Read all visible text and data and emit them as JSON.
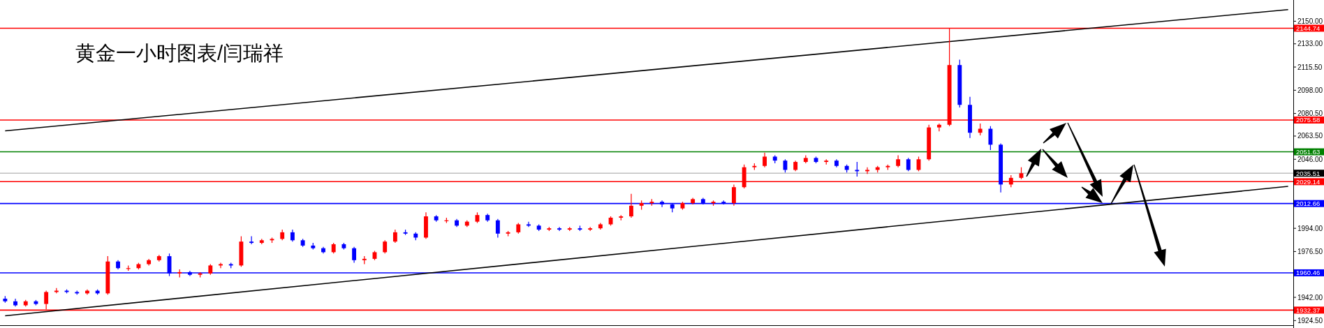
{
  "chart_data": {
    "type": "candlestick",
    "title": "黄金一小时图表/闫瑞祥",
    "categories": [
      null,
      null,
      null,
      null,
      null,
      null,
      null,
      null,
      null,
      null,
      null,
      null,
      null,
      null,
      null,
      null,
      null,
      null,
      null,
      null,
      null,
      null,
      null,
      null,
      null,
      null,
      null,
      null,
      null,
      null,
      null,
      null,
      null,
      null,
      null,
      null,
      null,
      null,
      null,
      null,
      null,
      null,
      null,
      null,
      null,
      null,
      null,
      null,
      null,
      null,
      null,
      null,
      null,
      null,
      null,
      null,
      null,
      null,
      null,
      null,
      null,
      null,
      null,
      null,
      null,
      null,
      null,
      null,
      null,
      null,
      null,
      null,
      null,
      null,
      null,
      null,
      null,
      null,
      null,
      null,
      null,
      null,
      null,
      null,
      null,
      null,
      null,
      null,
      null,
      null,
      null,
      null,
      null,
      null,
      null,
      null,
      null,
      null,
      null,
      null,
      null,
      null,
      null,
      null,
      null,
      null,
      null,
      null,
      null,
      null,
      null,
      null,
      null,
      null,
      null,
      null,
      null,
      null,
      null,
      null,
      null,
      null,
      null,
      null,
      null,
      null
    ],
    "ohlc": [
      [
        1941,
        1943,
        1938,
        1939
      ],
      [
        1939,
        1941,
        1935,
        1936
      ],
      [
        1936,
        1940,
        1935,
        1939
      ],
      [
        1939,
        1940,
        1936,
        1937
      ],
      [
        1937,
        1947,
        1933,
        1946
      ],
      [
        1946,
        1949,
        1945,
        1947
      ],
      [
        1947,
        1948,
        1945,
        1946
      ],
      [
        1946,
        1947,
        1944,
        1945
      ],
      [
        1945,
        1948,
        1944,
        1947
      ],
      [
        1947,
        1948,
        1944,
        1945
      ],
      [
        1945,
        1973,
        1944,
        1969
      ],
      [
        1969,
        1970,
        1963,
        1964
      ],
      [
        1964,
        1966,
        1962,
        1964
      ],
      [
        1964,
        1968,
        1963,
        1967
      ],
      [
        1967,
        1971,
        1966,
        1970
      ],
      [
        1970,
        1974,
        1969,
        1973
      ],
      [
        1973,
        1975,
        1958,
        1960
      ],
      [
        1960,
        1963,
        1957,
        1961
      ],
      [
        1961,
        1962,
        1958,
        1959
      ],
      [
        1959,
        1961,
        1957,
        1960
      ],
      [
        1960,
        1967,
        1959,
        1966
      ],
      [
        1966,
        1968,
        1964,
        1967
      ],
      [
        1967,
        1968,
        1964,
        1966
      ],
      [
        1966,
        1988,
        1965,
        1984
      ],
      [
        1984,
        1988,
        1982,
        1983
      ],
      [
        1983,
        1986,
        1982,
        1985
      ],
      [
        1985,
        1987,
        1983,
        1986
      ],
      [
        1986,
        1993,
        1985,
        1991
      ],
      [
        1991,
        1993,
        1984,
        1985
      ],
      [
        1985,
        1986,
        1980,
        1981
      ],
      [
        1981,
        1983,
        1978,
        1979
      ],
      [
        1979,
        1980,
        1975,
        1976
      ],
      [
        1976,
        1983,
        1975,
        1982
      ],
      [
        1982,
        1983,
        1978,
        1979
      ],
      [
        1979,
        1980,
        1968,
        1970
      ],
      [
        1970,
        1973,
        1967,
        1971
      ],
      [
        1971,
        1977,
        1970,
        1976
      ],
      [
        1976,
        1985,
        1975,
        1984
      ],
      [
        1984,
        1993,
        1983,
        1991
      ],
      [
        1991,
        1993,
        1989,
        1990
      ],
      [
        1990,
        1991,
        1985,
        1987
      ],
      [
        1987,
        2006,
        1986,
        2003
      ],
      [
        2003,
        2004,
        1999,
        2000
      ],
      [
        2000,
        2002,
        1998,
        2000
      ],
      [
        2000,
        2001,
        1995,
        1996
      ],
      [
        1996,
        2000,
        1995,
        1999
      ],
      [
        1999,
        2006,
        1998,
        2004
      ],
      [
        2004,
        2005,
        1999,
        2000
      ],
      [
        2000,
        2001,
        1987,
        1990
      ],
      [
        1990,
        1992,
        1988,
        1991
      ],
      [
        1991,
        1998,
        1990,
        1997
      ],
      [
        1997,
        1999,
        1995,
        1996
      ],
      [
        1996,
        1997,
        1992,
        1993
      ],
      [
        1993,
        1995,
        1992,
        1994
      ],
      [
        1994,
        1995,
        1992,
        1993
      ],
      [
        1993,
        1995,
        1992,
        1994
      ],
      [
        1994,
        1996,
        1992,
        1993
      ],
      [
        1993,
        1995,
        1992,
        1994
      ],
      [
        1994,
        1998,
        1993,
        1997
      ],
      [
        1997,
        2003,
        1996,
        2002
      ],
      [
        2002,
        2004,
        2000,
        2003
      ],
      [
        2003,
        2020,
        2002,
        2011
      ],
      [
        2011,
        2015,
        2008,
        2013
      ],
      [
        2013,
        2016,
        2011,
        2014
      ],
      [
        2014,
        2015,
        2010,
        2012
      ],
      [
        2012,
        2013,
        2006,
        2009
      ],
      [
        2009,
        2014,
        2008,
        2013
      ],
      [
        2013,
        2017,
        2012,
        2016
      ],
      [
        2016,
        2017,
        2012,
        2013
      ],
      [
        2013,
        2015,
        2011,
        2014
      ],
      [
        2014,
        2015,
        2012,
        2013
      ],
      [
        2013,
        2027,
        2011,
        2025
      ],
      [
        2025,
        2042,
        2024,
        2040
      ],
      [
        2040,
        2043,
        2038,
        2041
      ],
      [
        2041,
        2051,
        2040,
        2048
      ],
      [
        2048,
        2049,
        2043,
        2045
      ],
      [
        2045,
        2046,
        2036,
        2038
      ],
      [
        2038,
        2045,
        2037,
        2044
      ],
      [
        2044,
        2049,
        2043,
        2047
      ],
      [
        2047,
        2048,
        2043,
        2044
      ],
      [
        2044,
        2046,
        2042,
        2045
      ],
      [
        2045,
        2046,
        2040,
        2041
      ],
      [
        2041,
        2042,
        2036,
        2038
      ],
      [
        2038,
        2044,
        2033,
        2037
      ],
      [
        2037,
        2040,
        2035,
        2038
      ],
      [
        2038,
        2041,
        2036,
        2040
      ],
      [
        2040,
        2042,
        2038,
        2041
      ],
      [
        2041,
        2049,
        2040,
        2046
      ],
      [
        2046,
        2047,
        2037,
        2038
      ],
      [
        2038,
        2048,
        2037,
        2046
      ],
      [
        2046,
        2072,
        2045,
        2070
      ],
      [
        2070,
        2073,
        2067,
        2072
      ],
      [
        2072,
        2144.74,
        2071,
        2117
      ],
      [
        2117,
        2121,
        2085,
        2087
      ],
      [
        2087,
        2093,
        2062,
        2066
      ],
      [
        2066,
        2073,
        2064,
        2069
      ],
      [
        2069,
        2071,
        2053,
        2057
      ],
      [
        2057,
        2058,
        2021,
        2027
      ],
      [
        2027,
        2034,
        2025,
        2032
      ],
      [
        2032,
        2040,
        2031,
        2035.51
      ],
      null,
      null,
      null,
      null,
      null,
      null,
      null,
      null,
      null,
      null,
      null,
      null,
      null,
      null,
      null,
      null,
      null,
      null,
      null,
      null,
      null,
      null,
      null,
      null,
      null,
      null
    ],
    "colors": [
      "#0000ff",
      "#0000ff",
      "#ff0000",
      "#0000ff",
      "#ff0000",
      "#ff0000",
      "#0000ff",
      "#0000ff",
      "#ff0000",
      "#0000ff",
      "#ff0000",
      "#0000ff",
      "#ff0000",
      "#ff0000",
      "#ff0000",
      "#ff0000",
      "#0000ff",
      "#ff0000",
      "#0000ff",
      "#ff0000",
      "#ff0000",
      "#ff0000",
      "#0000ff",
      "#ff0000",
      "#0000ff",
      "#ff0000",
      "#ff0000",
      "#ff0000",
      "#0000ff",
      "#0000ff",
      "#0000ff",
      "#0000ff",
      "#ff0000",
      "#0000ff",
      "#0000ff",
      "#ff0000",
      "#ff0000",
      "#ff0000",
      "#ff0000",
      "#0000ff",
      "#0000ff",
      "#ff0000",
      "#0000ff",
      "#ff0000",
      "#0000ff",
      "#ff0000",
      "#ff0000",
      "#0000ff",
      "#0000ff",
      "#ff0000",
      "#ff0000",
      "#0000ff",
      "#0000ff",
      "#ff0000",
      "#0000ff",
      "#ff0000",
      "#0000ff",
      "#ff0000",
      "#ff0000",
      "#ff0000",
      "#ff0000",
      "#ff0000",
      "#ff0000",
      "#ff0000",
      "#0000ff",
      "#0000ff",
      "#ff0000",
      "#ff0000",
      "#0000ff",
      "#ff0000",
      "#0000ff",
      "#ff0000",
      "#ff0000",
      "#ff0000",
      "#ff0000",
      "#0000ff",
      "#0000ff",
      "#ff0000",
      "#ff0000",
      "#0000ff",
      "#ff0000",
      "#0000ff",
      "#0000ff",
      "#0000ff",
      "#ff0000",
      "#ff0000",
      "#ff0000",
      "#ff0000",
      "#0000ff",
      "#ff0000",
      "#ff0000",
      "#ff0000",
      "#ff0000",
      "#0000ff",
      "#0000ff",
      "#ff0000",
      "#0000ff",
      "#0000ff",
      "#ff0000",
      "#ff0000",
      null,
      null,
      null,
      null,
      null,
      null,
      null,
      null,
      null,
      null,
      null,
      null,
      null,
      null,
      null,
      null,
      null,
      null,
      null,
      null,
      null,
      null,
      null,
      null,
      null,
      null
    ],
    "series": [
      {
        "type": "line",
        "color": "#000000",
        "values": [
          2067.4,
          null,
          null,
          null,
          null,
          null,
          null,
          null,
          null,
          null,
          null,
          null,
          null,
          null,
          null,
          null,
          null,
          null,
          null,
          null,
          null,
          null,
          null,
          null,
          null,
          null,
          null,
          null,
          null,
          null,
          null,
          null,
          null,
          null,
          null,
          null,
          null,
          null,
          null,
          null,
          null,
          null,
          null,
          null,
          null,
          null,
          null,
          null,
          null,
          null,
          null,
          null,
          null,
          null,
          null,
          null,
          null,
          null,
          null,
          null,
          null,
          null,
          null,
          null,
          null,
          null,
          null,
          null,
          null,
          null,
          null,
          null,
          null,
          null,
          null,
          null,
          null,
          null,
          null,
          null,
          null,
          null,
          null,
          null,
          null,
          null,
          null,
          null,
          null,
          null,
          null,
          null,
          null,
          null,
          null,
          null,
          null,
          null,
          null,
          null,
          null,
          null,
          null,
          null,
          null,
          null,
          null,
          null,
          null,
          null,
          null,
          null,
          null,
          null,
          null,
          null,
          null,
          null,
          null,
          null,
          null,
          null,
          null,
          null,
          null,
          2158.8
        ]
      },
      {
        "type": "line",
        "color": "#000000",
        "values": [
          1928.1,
          null,
          null,
          null,
          null,
          null,
          null,
          null,
          null,
          null,
          null,
          null,
          null,
          null,
          null,
          null,
          null,
          null,
          null,
          null,
          null,
          null,
          null,
          null,
          null,
          null,
          null,
          null,
          null,
          null,
          null,
          null,
          null,
          null,
          null,
          null,
          null,
          null,
          null,
          null,
          null,
          null,
          null,
          null,
          null,
          null,
          null,
          null,
          null,
          null,
          null,
          null,
          null,
          null,
          null,
          null,
          null,
          null,
          null,
          null,
          null,
          null,
          null,
          null,
          null,
          null,
          null,
          null,
          null,
          null,
          null,
          null,
          null,
          null,
          null,
          null,
          null,
          null,
          null,
          null,
          null,
          null,
          null,
          null,
          null,
          null,
          null,
          null,
          null,
          null,
          null,
          null,
          null,
          null,
          null,
          null,
          null,
          null,
          null,
          null,
          null,
          null,
          null,
          null,
          null,
          null,
          null,
          null,
          null,
          null,
          null,
          null,
          null,
          null,
          null,
          null,
          null,
          null,
          null,
          null,
          null,
          null,
          null,
          null,
          null,
          2025.6
        ]
      }
    ],
    "ylim": [
      1921,
      2166
    ],
    "yticks": [
      {
        "value": 2150,
        "label": "2150.00"
      },
      {
        "value": 2133,
        "label": "2133.00"
      },
      {
        "value": 2115.5,
        "label": "2115.50"
      },
      {
        "value": 2098,
        "label": "2098.00"
      },
      {
        "value": 2080.5,
        "label": "2080.50"
      },
      {
        "value": 2063.5,
        "label": "2063.50"
      },
      {
        "value": 2046,
        "label": "2046.00"
      },
      {
        "value": 1994,
        "label": "1994.00"
      },
      {
        "value": 1976.5,
        "label": "1976.50"
      },
      {
        "value": 1942,
        "label": "1942.00"
      },
      {
        "value": 1924.5,
        "label": "1924.50"
      }
    ],
    "tick_labels": "y",
    "ref_lines": [
      {
        "axis": "y",
        "value": 2144.74,
        "label": "2144.74",
        "color": "#ff0000"
      },
      {
        "axis": "y",
        "value": 2075.58,
        "label": "2075.58",
        "color": "#ff0000"
      },
      {
        "axis": "y",
        "value": 2051.63,
        "label": "2051.63",
        "color": "#008000"
      },
      {
        "axis": "y",
        "value": 2035.51,
        "label": "2035.51",
        "color": "#c0c0c0"
      },
      {
        "axis": "y",
        "value": 2029.14,
        "label": "2029.14",
        "color": "#ff0000"
      },
      {
        "axis": "y",
        "value": 2012.66,
        "label": "2012.66",
        "color": "#0000ff"
      },
      {
        "axis": "y",
        "value": 1960.46,
        "label": "1960.46",
        "color": "#0000ff"
      },
      {
        "axis": "y",
        "value": 1932.37,
        "label": "1932.37",
        "color": "#ff0000"
      }
    ]
  }
}
